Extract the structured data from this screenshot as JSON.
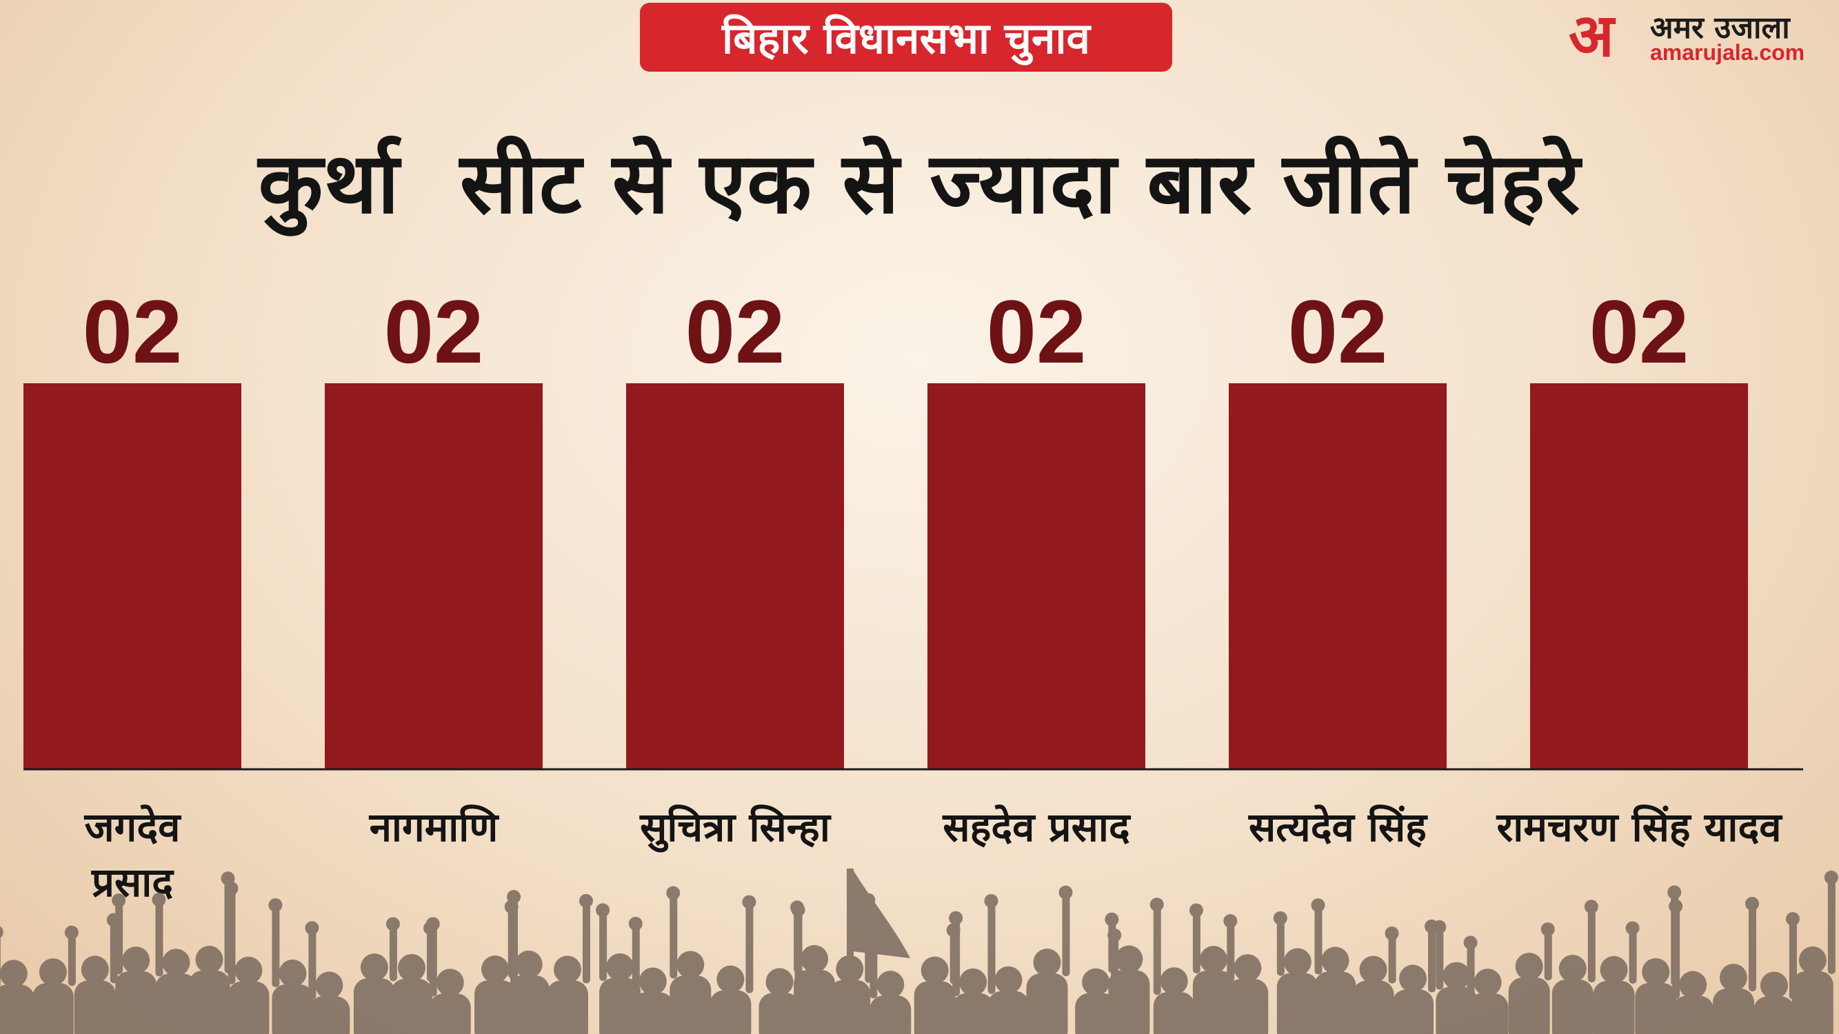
{
  "badge": "बिहार विधानसभा चुनाव",
  "logo": {
    "mark": "अ",
    "name": "अमर उजाला",
    "url": "amarujala.com"
  },
  "headline": "कुर्था  सीट से एक से ज्यादा बार जीते चेहरे",
  "chart_data": {
    "type": "bar",
    "title": "",
    "xlabel": "",
    "ylabel": "",
    "categories": [
      "जगदेव प्रसाद",
      "नागमाणि",
      "सुचित्रा सिन्हा",
      "सहदेव प्रसाद",
      "सत्यदेव सिंह",
      "रामचरण सिंह यादव"
    ],
    "category_lines": [
      [
        "जगदेव",
        "प्रसाद"
      ],
      [
        "नागमाणि"
      ],
      [
        "सुचित्रा सिन्हा"
      ],
      [
        "सहदेव प्रसाद"
      ],
      [
        "सत्यदेव सिंह"
      ],
      [
        "रामचरण सिंह यादव"
      ]
    ],
    "values": [
      2,
      2,
      2,
      2,
      2,
      2
    ],
    "value_labels": [
      "02",
      "02",
      "02",
      "02",
      "02",
      "02"
    ],
    "ylim": [
      0,
      2
    ],
    "grid": false,
    "bar_color": "#921a1f",
    "value_label_color": "#6e1216"
  },
  "colors": {
    "accent": "#d8262d",
    "crowd": "#7a6a5e"
  }
}
